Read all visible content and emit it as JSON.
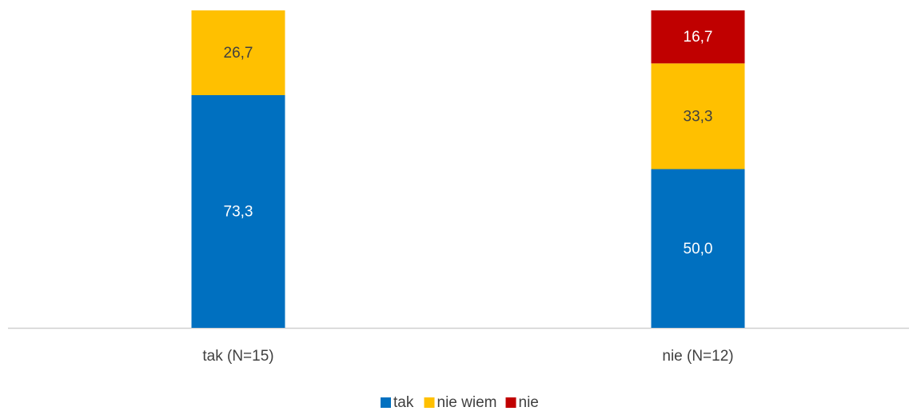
{
  "chart_data": {
    "type": "stacked_bar",
    "categories": [
      "tak (N=15)",
      "nie (N=12)"
    ],
    "series": [
      {
        "name": "tak",
        "color": "#0070c0",
        "values": [
          73.3,
          50.0
        ],
        "value_labels": [
          "73,3",
          "50,0"
        ]
      },
      {
        "name": "nie wiem",
        "color": "#ffc000",
        "values": [
          26.7,
          33.3
        ],
        "value_labels": [
          "26,7",
          "33,3"
        ]
      },
      {
        "name": "nie",
        "color": "#c00000",
        "values": [
          null,
          16.7
        ],
        "value_labels": [
          null,
          "16,7"
        ]
      }
    ],
    "ylim": [
      0,
      100
    ],
    "legend": "bottom"
  }
}
